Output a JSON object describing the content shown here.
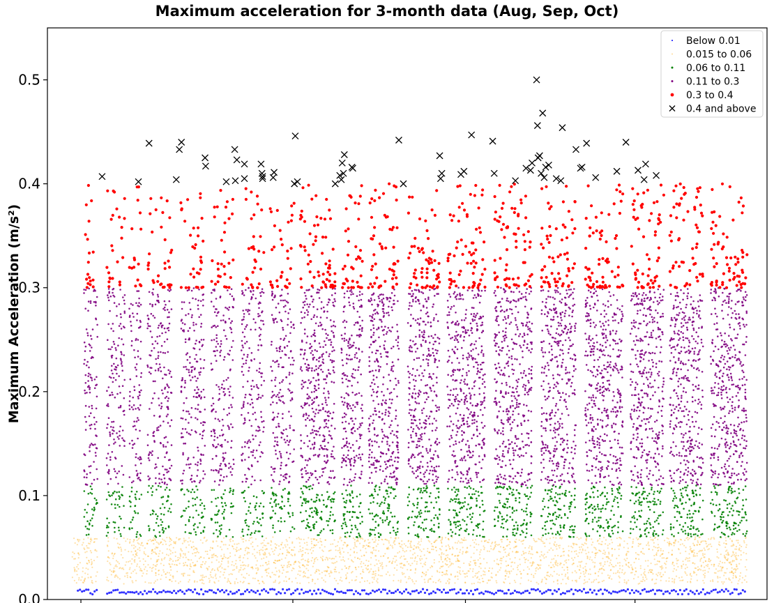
{
  "chart_data": {
    "type": "scatter",
    "title": "Maximum acceleration for 3-month data (Aug, Sep, Oct)",
    "xlabel": "",
    "ylabel": "Maximum Acceleration (m/s²)",
    "ylim": [
      0.0,
      0.55
    ],
    "yticks": [
      "0.0",
      "0.1",
      "0.2",
      "0.3",
      "0.4",
      "0.5"
    ],
    "xtick_labels": [],
    "grid": false,
    "legend_position": "top-right",
    "series": [
      {
        "name": "Below 0.01",
        "color": "#0000ff",
        "marker": "dot",
        "y_range": [
          0.005,
          0.01
        ]
      },
      {
        "name": "0.015 to 0.06",
        "color": "#ffa500",
        "marker": "dot",
        "y_range": [
          0.015,
          0.06
        ]
      },
      {
        "name": "0.06 to 0.11",
        "color": "#008000",
        "marker": "dot",
        "y_range": [
          0.06,
          0.11
        ]
      },
      {
        "name": "0.11 to 0.3",
        "color": "#800080",
        "marker": "dot",
        "y_range": [
          0.11,
          0.3
        ]
      },
      {
        "name": "0.3 to 0.4",
        "color": "#ff0000",
        "marker": "dot",
        "y_range": [
          0.3,
          0.4
        ]
      },
      {
        "name": "0.4 and above",
        "color": "#000000",
        "marker": "x",
        "y_range": [
          0.4,
          0.5
        ]
      }
    ],
    "x_extent": [
      0,
      1
    ],
    "active_bands": [
      [
        0.04,
        0.085
      ],
      [
        0.115,
        0.175
      ],
      [
        0.19,
        0.23
      ],
      [
        0.25,
        0.33
      ],
      [
        0.36,
        0.44
      ],
      [
        0.46,
        0.535
      ],
      [
        0.56,
        0.635
      ],
      [
        0.655,
        0.735
      ],
      [
        0.755,
        0.87
      ],
      [
        0.89,
        0.96
      ],
      [
        0.98,
        1.08
      ],
      [
        1.11,
        1.215
      ],
      [
        1.24,
        1.365
      ],
      [
        1.395,
        1.52
      ],
      [
        1.55,
        1.665
      ],
      [
        1.695,
        1.82
      ],
      [
        1.845,
        1.955
      ],
      [
        1.975,
        2.085
      ],
      [
        2.11,
        2.23
      ]
    ],
    "x_band_scale": 2.25,
    "outliers_04_and_above": [
      {
        "x": 0.1,
        "y": 0.407
      },
      {
        "x": 0.22,
        "y": 0.402
      },
      {
        "x": 0.255,
        "y": 0.439
      },
      {
        "x": 0.345,
        "y": 0.404
      },
      {
        "x": 0.355,
        "y": 0.433
      },
      {
        "x": 0.362,
        "y": 0.44
      },
      {
        "x": 0.44,
        "y": 0.425
      },
      {
        "x": 0.442,
        "y": 0.417
      },
      {
        "x": 0.51,
        "y": 0.402
      },
      {
        "x": 0.538,
        "y": 0.433
      },
      {
        "x": 0.54,
        "y": 0.403
      },
      {
        "x": 0.545,
        "y": 0.423
      },
      {
        "x": 0.57,
        "y": 0.419
      },
      {
        "x": 0.57,
        "y": 0.405
      },
      {
        "x": 0.625,
        "y": 0.419
      },
      {
        "x": 0.628,
        "y": 0.41
      },
      {
        "x": 0.63,
        "y": 0.405
      },
      {
        "x": 0.63,
        "y": 0.407
      },
      {
        "x": 0.665,
        "y": 0.406
      },
      {
        "x": 0.668,
        "y": 0.411
      },
      {
        "x": 0.738,
        "y": 0.446
      },
      {
        "x": 0.745,
        "y": 0.402
      },
      {
        "x": 0.735,
        "y": 0.4
      },
      {
        "x": 0.87,
        "y": 0.4
      },
      {
        "x": 0.885,
        "y": 0.408
      },
      {
        "x": 0.89,
        "y": 0.404
      },
      {
        "x": 0.893,
        "y": 0.42
      },
      {
        "x": 0.9,
        "y": 0.428
      },
      {
        "x": 0.897,
        "y": 0.41
      },
      {
        "x": 0.925,
        "y": 0.416
      },
      {
        "x": 0.928,
        "y": 0.415
      },
      {
        "x": 1.08,
        "y": 0.442
      },
      {
        "x": 1.095,
        "y": 0.4
      },
      {
        "x": 1.215,
        "y": 0.427
      },
      {
        "x": 1.218,
        "y": 0.405
      },
      {
        "x": 1.222,
        "y": 0.41
      },
      {
        "x": 1.285,
        "y": 0.409
      },
      {
        "x": 1.295,
        "y": 0.412
      },
      {
        "x": 1.32,
        "y": 0.447
      },
      {
        "x": 1.39,
        "y": 0.441
      },
      {
        "x": 1.395,
        "y": 0.41
      },
      {
        "x": 1.465,
        "y": 0.403
      },
      {
        "x": 1.5,
        "y": 0.415
      },
      {
        "x": 1.515,
        "y": 0.413
      },
      {
        "x": 1.52,
        "y": 0.42
      },
      {
        "x": 1.535,
        "y": 0.5
      },
      {
        "x": 1.538,
        "y": 0.456
      },
      {
        "x": 1.54,
        "y": 0.425
      },
      {
        "x": 1.545,
        "y": 0.427
      },
      {
        "x": 1.55,
        "y": 0.41
      },
      {
        "x": 1.555,
        "y": 0.468
      },
      {
        "x": 1.56,
        "y": 0.406
      },
      {
        "x": 1.565,
        "y": 0.416
      },
      {
        "x": 1.575,
        "y": 0.418
      },
      {
        "x": 1.6,
        "y": 0.405
      },
      {
        "x": 1.615,
        "y": 0.403
      },
      {
        "x": 1.62,
        "y": 0.454
      },
      {
        "x": 1.665,
        "y": 0.433
      },
      {
        "x": 1.68,
        "y": 0.415
      },
      {
        "x": 1.685,
        "y": 0.416
      },
      {
        "x": 1.7,
        "y": 0.439
      },
      {
        "x": 1.73,
        "y": 0.406
      },
      {
        "x": 1.8,
        "y": 0.412
      },
      {
        "x": 1.83,
        "y": 0.44
      },
      {
        "x": 1.87,
        "y": 0.413
      },
      {
        "x": 1.89,
        "y": 0.404
      },
      {
        "x": 1.895,
        "y": 0.419
      },
      {
        "x": 1.93,
        "y": 0.408
      }
    ]
  }
}
